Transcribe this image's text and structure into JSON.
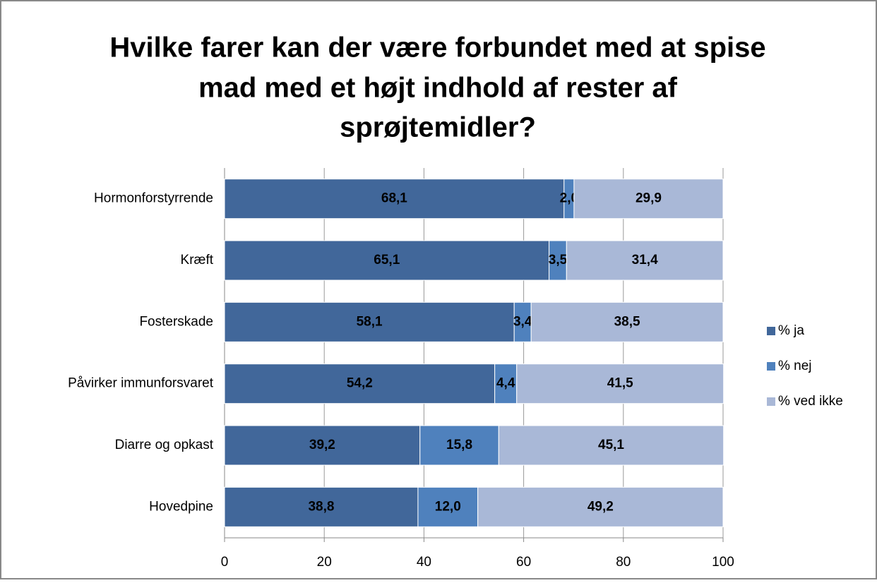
{
  "chart_data": {
    "type": "stacked-bar-horizontal",
    "title": [
      "Hvilke farer kan der være forbundet med at spise",
      "mad med et højt indhold af rester af",
      "sprøjtemidler?"
    ],
    "categories": [
      "Hormonforstyrrende",
      "Kræft",
      "Fosterskade",
      "Påvirker immunforsvaret",
      "Diarre og opkast",
      "Hovedpine"
    ],
    "series": [
      {
        "name": "% ja",
        "color": "#41679a",
        "values": [
          68.1,
          65.1,
          58.1,
          54.2,
          39.2,
          38.8
        ],
        "value_labels": [
          "68,1",
          "65,1",
          "58,1",
          "54,2",
          "39,2",
          "38,8"
        ]
      },
      {
        "name": "% nej",
        "color": "#4f81bd",
        "values": [
          2.0,
          3.5,
          3.4,
          4.4,
          15.8,
          12.0
        ],
        "value_labels": [
          "2,0",
          "3,5",
          "3,4",
          "4,4",
          "15,8",
          "12,0"
        ]
      },
      {
        "name": "% ved ikke",
        "color": "#a9b8d7",
        "values": [
          29.9,
          31.4,
          38.5,
          41.5,
          45.1,
          49.2
        ],
        "value_labels": [
          "29,9",
          "31,4",
          "38,5",
          "41,5",
          "45,1",
          "49,2"
        ]
      }
    ],
    "xlim": [
      0,
      100
    ],
    "xticks": [
      0,
      20,
      40,
      60,
      80,
      100
    ],
    "grid": true,
    "legend": "right"
  }
}
